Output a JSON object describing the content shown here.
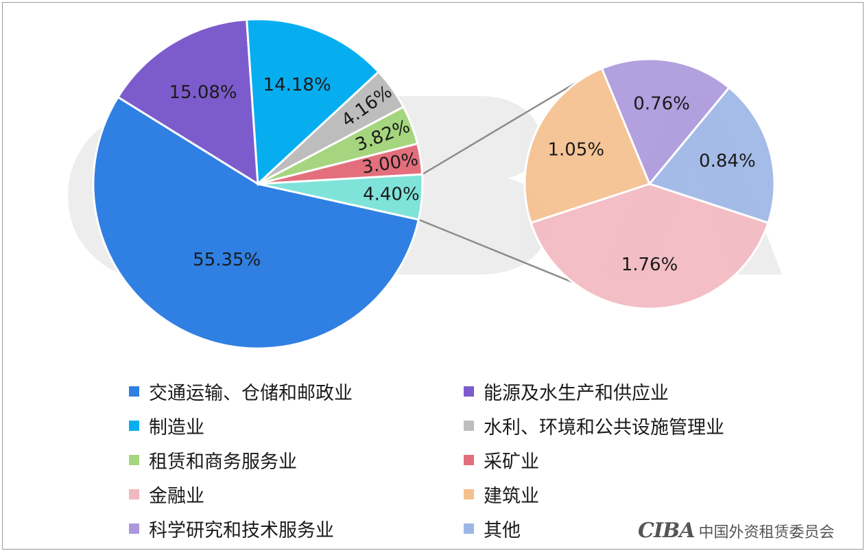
{
  "chart_data": {
    "type": "pie",
    "title": "",
    "legend_position": "bottom",
    "main_pie": {
      "slices": [
        {
          "key": "transport",
          "label": "交通运输、仓储和邮政业",
          "value": 55.35,
          "value_label": "55.35%",
          "color": "#3080E3"
        },
        {
          "key": "energy",
          "label": "能源及水生产和供应业",
          "value": 15.08,
          "value_label": "15.08%",
          "color": "#7C5CCC"
        },
        {
          "key": "manufacturing",
          "label": "制造业",
          "value": 14.18,
          "value_label": "14.18%",
          "color": "#06AEF0"
        },
        {
          "key": "water",
          "label": "水利、环境和公共设施管理业",
          "value": 4.16,
          "value_label": "4.16%",
          "color": "#BDBDBD"
        },
        {
          "key": "leasing",
          "label": "租赁和商务服务业",
          "value": 3.82,
          "value_label": "3.82%",
          "color": "#A6D57F"
        },
        {
          "key": "mining",
          "label": "采矿业",
          "value": 3.0,
          "value_label": "3.00%",
          "color": "#E36F7D"
        },
        {
          "key": "others_group",
          "label": "",
          "value": 4.4,
          "value_label": "4.40%",
          "color": "#7FE3DA"
        }
      ]
    },
    "sub_pie": {
      "slices": [
        {
          "key": "finance",
          "label": "金融业",
          "value": 1.76,
          "value_label": "1.76%",
          "color": "#F2B8C0"
        },
        {
          "key": "construction",
          "label": "建筑业",
          "value": 1.05,
          "value_label": "1.05%",
          "color": "#F4C08E"
        },
        {
          "key": "science",
          "label": "科学研究和技术服务业",
          "value": 0.76,
          "value_label": "0.76%",
          "color": "#AC98DC"
        },
        {
          "key": "other",
          "label": "其他",
          "value": 0.84,
          "value_label": "0.84%",
          "color": "#9DB6E6"
        }
      ]
    },
    "legend": [
      {
        "label": "交通运输、仓储和邮政业",
        "color": "#3080E3"
      },
      {
        "label": "能源及水生产和供应业",
        "color": "#7C5CCC"
      },
      {
        "label": "制造业",
        "color": "#06AEF0"
      },
      {
        "label": "水利、环境和公共设施管理业",
        "color": "#BDBDBD"
      },
      {
        "label": "租赁和商务服务业",
        "color": "#A6D57F"
      },
      {
        "label": "采矿业",
        "color": "#E36F7D"
      },
      {
        "label": "金融业",
        "color": "#F2B8C0"
      },
      {
        "label": "建筑业",
        "color": "#F4C08E"
      },
      {
        "label": "科学研究和技术服务业",
        "color": "#AC98DC"
      },
      {
        "label": "其他",
        "color": "#9DB6E6"
      }
    ]
  },
  "brand": {
    "logo_text": "CIBA",
    "org_name": "中国外资租赁委员会"
  }
}
